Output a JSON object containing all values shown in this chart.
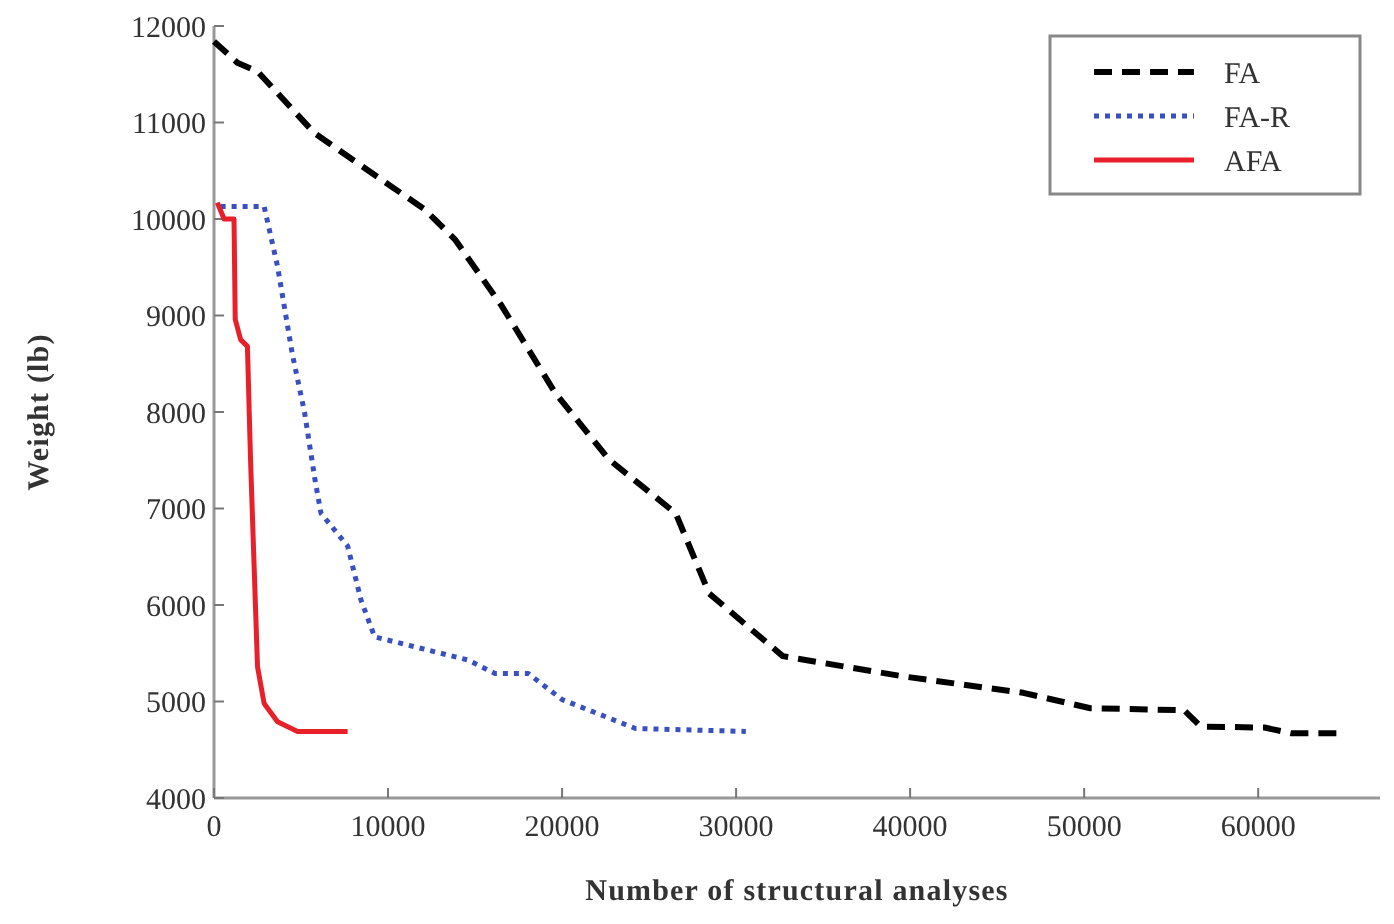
{
  "chart_data": {
    "type": "line",
    "xlabel": "Number of structural analyses",
    "ylabel": "Weight (lb)",
    "xlim": [
      0,
      67000
    ],
    "ylim": [
      4000,
      12000
    ],
    "xticks": [
      0,
      10000,
      20000,
      30000,
      40000,
      50000,
      60000
    ],
    "yticks": [
      4000,
      5000,
      6000,
      7000,
      8000,
      9000,
      10000,
      11000,
      12000
    ],
    "grid": false,
    "legend": "top right",
    "marker": "none",
    "series": [
      {
        "name": "FA",
        "color": "#000000",
        "line_style": "dashed",
        "x": [
          0,
          1340,
          2500,
          5770,
          8800,
          12100,
          13840,
          16530,
          19600,
          22680,
          26530,
          28450,
          32680,
          39600,
          46500,
          50360,
          55740,
          56700,
          60360,
          61900,
          64780
        ],
        "values": [
          11840,
          11620,
          11530,
          10890,
          10510,
          10100,
          9790,
          9100,
          8200,
          7510,
          6950,
          6120,
          5470,
          5260,
          5090,
          4930,
          4910,
          4740,
          4730,
          4670,
          4670
        ]
      },
      {
        "name": "FA-R",
        "color": "#3a4fc0",
        "line_style": "dotted",
        "x": [
          380,
          2880,
          3650,
          4500,
          5200,
          5800,
          6150,
          7680,
          8450,
          9230,
          14600,
          16150,
          18060,
          20000,
          24220,
          30560
        ],
        "values": [
          10130,
          10130,
          9510,
          8600,
          8000,
          7300,
          6950,
          6610,
          6050,
          5670,
          5430,
          5290,
          5290,
          5020,
          4720,
          4690
        ]
      },
      {
        "name": "AFA",
        "color": "#e8202a",
        "line_style": "solid",
        "x": [
          190,
          580,
          1150,
          1220,
          1530,
          1920,
          2100,
          2500,
          2880,
          3650,
          4800,
          7680
        ],
        "values": [
          10170,
          10000,
          10000,
          8960,
          8750,
          8680,
          7500,
          5360,
          4980,
          4790,
          4690,
          4690
        ]
      }
    ]
  }
}
